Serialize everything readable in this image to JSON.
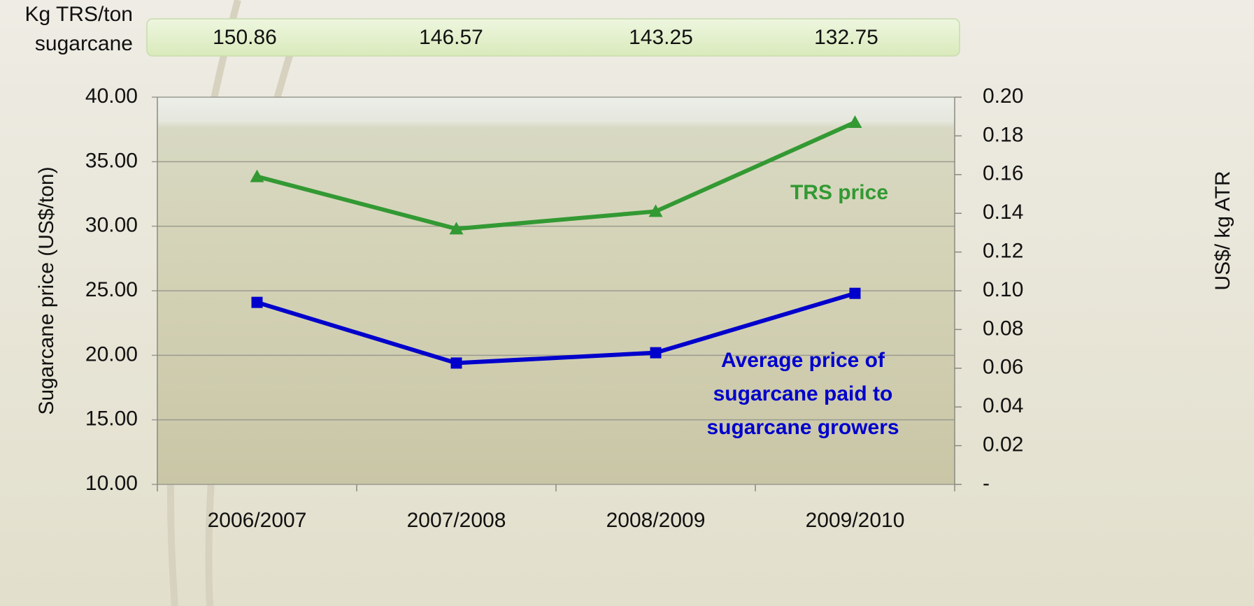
{
  "chart_data": {
    "type": "line",
    "header_row": {
      "label_lines": [
        "Kg TRS/ton",
        "sugarcane"
      ],
      "values": [
        150.86,
        146.57,
        143.25,
        132.75
      ]
    },
    "categories": [
      "2006/2007",
      "2007/2008",
      "2008/2009",
      "2009/2010"
    ],
    "ylabel": "Sugarcane price (US$/ton)",
    "y2label": "US$/ kg ATR",
    "ylim": [
      10,
      40
    ],
    "yticks": [
      {
        "value": 10,
        "label": "10.00"
      },
      {
        "value": 15,
        "label": "15.00"
      },
      {
        "value": 20,
        "label": "20.00"
      },
      {
        "value": 25,
        "label": "25.00"
      },
      {
        "value": 30,
        "label": "30.00"
      },
      {
        "value": 35,
        "label": "35.00"
      },
      {
        "value": 40,
        "label": "40.00"
      }
    ],
    "y2lim": [
      0,
      0.2
    ],
    "y2ticks": [
      {
        "value": 0,
        "label": "-"
      },
      0.02,
      0.04,
      0.06,
      0.08,
      {
        "value": 0.1,
        "label": "0.10"
      },
      0.12,
      0.14,
      0.16,
      0.18,
      {
        "value": 0.2,
        "label": "0.20"
      }
    ],
    "grid": true,
    "series": [
      {
        "label_lines": [
          "TRS price"
        ],
        "color": "#339933",
        "marker": "triangle",
        "axis": "y2",
        "values": [
          0.159,
          0.132,
          0.141,
          0.187
        ]
      },
      {
        "label_lines": [
          "Average price of",
          "sugarcane paid to",
          "sugarcane growers"
        ],
        "color": "#0000cc",
        "marker": "square",
        "values": [
          24.1,
          19.4,
          20.2,
          24.8
        ]
      }
    ]
  }
}
